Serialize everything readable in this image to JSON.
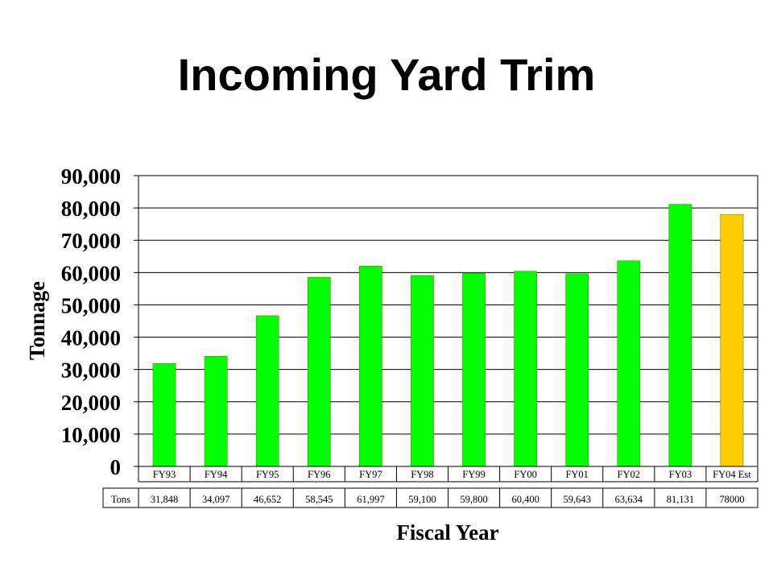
{
  "chart_data": {
    "type": "bar",
    "title": "Incoming Yard Trim",
    "xlabel": "Fiscal Year",
    "ylabel": "Tonnage",
    "ylim": [
      0,
      90000
    ],
    "yticks": [
      "0",
      "10,000",
      "20,000",
      "30,000",
      "40,000",
      "50,000",
      "60,000",
      "70,000",
      "80,000",
      "90,000"
    ],
    "yticks_values": [
      0,
      10000,
      20000,
      30000,
      40000,
      50000,
      60000,
      70000,
      80000,
      90000
    ],
    "categories": [
      "FY93",
      "FY94",
      "FY95",
      "FY96",
      "FY97",
      "FY98",
      "FY99",
      "FY00",
      "FY01",
      "FY02",
      "FY03",
      "FY04 Est"
    ],
    "values": [
      31848,
      34097,
      46652,
      58545,
      61997,
      59100,
      59800,
      60400,
      59643,
      63634,
      81131,
      78000
    ],
    "table": {
      "row_label": "Tons",
      "cells": [
        "31,848",
        "34,097",
        "46,652",
        "58,545",
        "61,997",
        "59,100",
        "59,800",
        "60,400",
        "59,643",
        "63,634",
        "81,131",
        "78000"
      ]
    },
    "bar_colors": [
      "#00ff00",
      "#00ff00",
      "#00ff00",
      "#00ff00",
      "#00ff00",
      "#00ff00",
      "#00ff00",
      "#00ff00",
      "#00ff00",
      "#00ff00",
      "#00ff00",
      "#ffcc00"
    ],
    "grid": true
  }
}
